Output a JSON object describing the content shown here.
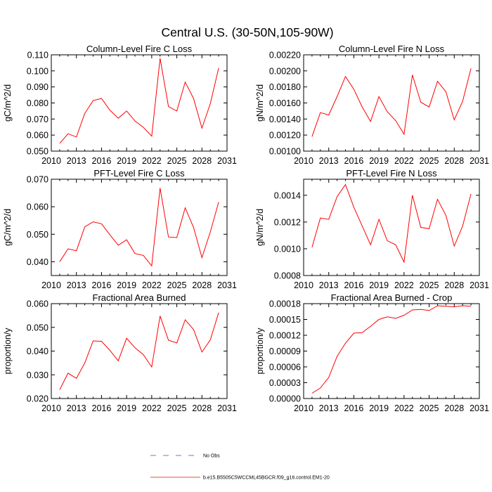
{
  "figure": {
    "title": "Central U.S. (30-50N,105-90W)"
  },
  "legend": {
    "items": [
      {
        "label": "No Obs",
        "style": "dashed",
        "color": "#4b4bb8"
      },
      {
        "label": "b.e15.B5505C5WCCML45BGCR.f09_g16.control.EM1-20",
        "style": "solid",
        "color": "#ff0000"
      }
    ]
  },
  "chart_data": [
    {
      "type": "line",
      "title": "Column-Level Fire C Loss",
      "ylabel": "gC/m^2/d",
      "xlim": [
        2010,
        2031
      ],
      "ylim": [
        0.05,
        0.11
      ],
      "x_ticks": [
        "2010",
        "2013",
        "2016",
        "2019",
        "2022",
        "2025",
        "2028",
        "2031"
      ],
      "y_ticks": [
        "0.050",
        "0.060",
        "0.070",
        "0.080",
        "0.090",
        "0.100",
        "0.110"
      ],
      "series": [
        {
          "color": "#ff0000",
          "x": [
            2011,
            2012,
            2013,
            2014,
            2015,
            2016,
            2017,
            2018,
            2019,
            2020,
            2021,
            2022,
            2023,
            2024,
            2025,
            2026,
            2027,
            2028,
            2029,
            2030
          ],
          "values": [
            0.0548,
            0.0608,
            0.0588,
            0.0735,
            0.0815,
            0.0828,
            0.0755,
            0.0705,
            0.075,
            0.0688,
            0.0648,
            0.0593,
            0.1078,
            0.0778,
            0.075,
            0.093,
            0.0828,
            0.0643,
            0.0795,
            0.1018
          ]
        }
      ]
    },
    {
      "type": "line",
      "title": "Column-Level Fire N Loss",
      "ylabel": "gN/m^2/d",
      "xlim": [
        2010,
        2031
      ],
      "ylim": [
        0.001,
        0.0022
      ],
      "x_ticks": [
        "2010",
        "2013",
        "2016",
        "2019",
        "2022",
        "2025",
        "2028",
        "2031"
      ],
      "y_ticks": [
        "0.00100",
        "0.00120",
        "0.00140",
        "0.00160",
        "0.00180",
        "0.00200",
        "0.00220"
      ],
      "series": [
        {
          "color": "#ff0000",
          "x": [
            2011,
            2012,
            2013,
            2014,
            2015,
            2016,
            2017,
            2018,
            2019,
            2020,
            2021,
            2022,
            2023,
            2024,
            2025,
            2026,
            2027,
            2028,
            2029,
            2030
          ],
          "values": [
            0.00118,
            0.00148,
            0.00145,
            0.00168,
            0.00193,
            0.00177,
            0.00155,
            0.00137,
            0.00168,
            0.00149,
            0.00138,
            0.00121,
            0.00195,
            0.00161,
            0.00155,
            0.00187,
            0.00174,
            0.00139,
            0.00162,
            0.00203
          ]
        }
      ]
    },
    {
      "type": "line",
      "title": "PFT-Level Fire C Loss",
      "ylabel": "gC/m^2/d",
      "xlim": [
        2010,
        2031
      ],
      "ylim": [
        0.035,
        0.07
      ],
      "x_ticks": [
        "2010",
        "2013",
        "2016",
        "2019",
        "2022",
        "2025",
        "2028",
        "2031"
      ],
      "y_ticks": [
        "0.040",
        "0.050",
        "0.060",
        "0.070"
      ],
      "series": [
        {
          "color": "#ff0000",
          "x": [
            2011,
            2012,
            2013,
            2014,
            2015,
            2016,
            2017,
            2018,
            2019,
            2020,
            2021,
            2022,
            2023,
            2024,
            2025,
            2026,
            2027,
            2028,
            2029,
            2030
          ],
          "values": [
            0.04,
            0.0447,
            0.044,
            0.0527,
            0.0545,
            0.0538,
            0.0498,
            0.046,
            0.048,
            0.043,
            0.0423,
            0.0385,
            0.0668,
            0.049,
            0.0488,
            0.0596,
            0.0525,
            0.0415,
            0.0508,
            0.0617
          ]
        }
      ]
    },
    {
      "type": "line",
      "title": "PFT-Level Fire N Loss",
      "ylabel": "gN/m^2/d",
      "xlim": [
        2010,
        2031
      ],
      "ylim": [
        0.0008,
        0.00152
      ],
      "x_ticks": [
        "2010",
        "2013",
        "2016",
        "2019",
        "2022",
        "2025",
        "2028",
        "2031"
      ],
      "y_ticks": [
        "0.0008",
        "0.0010",
        "0.0012",
        "0.0014"
      ],
      "series": [
        {
          "color": "#ff0000",
          "x": [
            2011,
            2012,
            2013,
            2014,
            2015,
            2016,
            2017,
            2018,
            2019,
            2020,
            2021,
            2022,
            2023,
            2024,
            2025,
            2026,
            2027,
            2028,
            2029,
            2030
          ],
          "values": [
            0.00101,
            0.00123,
            0.00122,
            0.00139,
            0.00148,
            0.00131,
            0.00117,
            0.00103,
            0.00122,
            0.00106,
            0.00103,
            0.0009,
            0.0014,
            0.00116,
            0.00115,
            0.00137,
            0.00125,
            0.00102,
            0.00117,
            0.00141
          ]
        }
      ]
    },
    {
      "type": "line",
      "title": "Fractional Area Burned",
      "ylabel": "proportion/y",
      "xlim": [
        2010,
        2031
      ],
      "ylim": [
        0.02,
        0.06
      ],
      "x_ticks": [
        "2010",
        "2013",
        "2016",
        "2019",
        "2022",
        "2025",
        "2028",
        "2031"
      ],
      "y_ticks": [
        "0.020",
        "0.030",
        "0.040",
        "0.050",
        "0.060"
      ],
      "series": [
        {
          "color": "#ff0000",
          "x": [
            2011,
            2012,
            2013,
            2014,
            2015,
            2016,
            2017,
            2018,
            2019,
            2020,
            2021,
            2022,
            2023,
            2024,
            2025,
            2026,
            2027,
            2028,
            2029,
            2030
          ],
          "values": [
            0.0237,
            0.0307,
            0.0285,
            0.035,
            0.0443,
            0.0441,
            0.0403,
            0.0359,
            0.0454,
            0.0414,
            0.0385,
            0.0333,
            0.0548,
            0.0446,
            0.0434,
            0.0532,
            0.0491,
            0.0396,
            0.0447,
            0.0562
          ]
        }
      ]
    },
    {
      "type": "line",
      "title": "Fractional Area Burned - Crop",
      "ylabel": "proportion/y",
      "xlim": [
        2010,
        2031
      ],
      "ylim": [
        0,
        0.00018
      ],
      "x_ticks": [
        "2010",
        "2013",
        "2016",
        "2019",
        "2022",
        "2025",
        "2028",
        "2031"
      ],
      "y_ticks": [
        "0.00000",
        "0.00003",
        "0.00006",
        "0.00009",
        "0.00012",
        "0.00015",
        "0.00018"
      ],
      "series": [
        {
          "color": "#ff0000",
          "x": [
            2011,
            2012,
            2013,
            2014,
            2015,
            2016,
            2017,
            2018,
            2019,
            2020,
            2021,
            2022,
            2023,
            2024,
            2025,
            2026,
            2027,
            2028,
            2029,
            2030
          ],
          "values": [
            1e-05,
            2e-05,
            4e-05,
            8e-05,
            0.000105,
            0.000124,
            0.000125,
            0.000137,
            0.00015,
            0.000155,
            0.000152,
            0.000158,
            0.000168,
            0.000169,
            0.000167,
            0.000176,
            0.000175,
            0.000174,
            0.000176,
            0.000175
          ]
        }
      ]
    }
  ]
}
